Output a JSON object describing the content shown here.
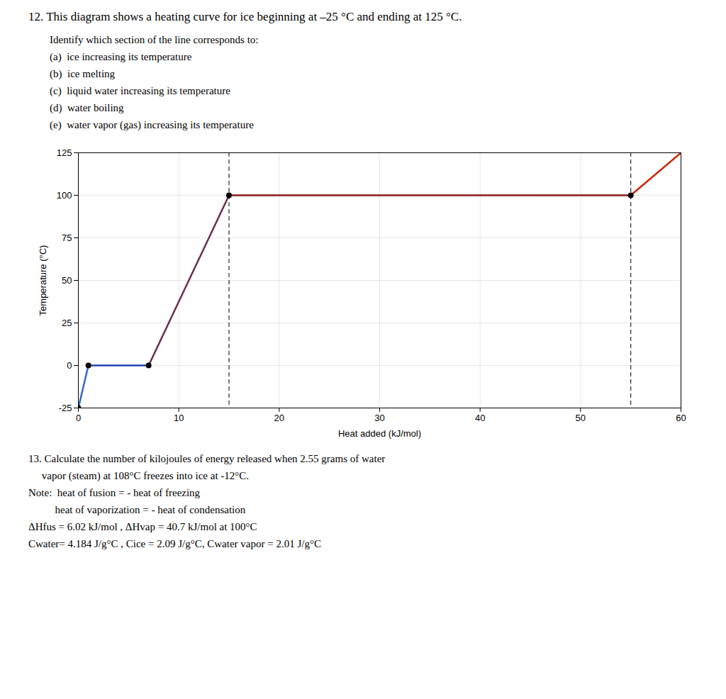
{
  "chart_data": {
    "type": "line",
    "title": "12. This diagram shows a heating curve for ice beginning at –25 °C and ending at 125 °C.",
    "subtitle": [
      "Identify which section of the line corresponds to:",
      "(a)  ice increasing its temperature",
      "(b)  ice melting",
      "(c)  liquid water increasing its temperature",
      "(d)  water boiling",
      "(e)  water vapor (gas) increasing its temperature"
    ],
    "annotations": [
      "13. Calculate the number of kilojoules of energy released when 2.55 grams of water",
      "     vapor (steam) at 108°C freezes into ice at -12°C.",
      "Note:  heat of fusion = - heat of freezing",
      "          heat of vaporization = - heat of condensation",
      "ΔHfus = 6.02 kJ/mol , ΔHvap = 40.7 kJ/mol at 100°C",
      "Cwater= 4.184 J/g°C , Cice = 2.09 J/g°C, Cwater vapor = 2.01 J/g°C"
    ],
    "x": [
      0,
      1,
      7,
      15,
      55,
      60
    ],
    "values": [
      -25,
      0,
      0,
      100,
      100,
      125
    ],
    "colors": [
      "#3366cc",
      "#2244aa",
      "#6b2d4e",
      "#8b1a1a",
      "#cc2200"
    ],
    "markers": {
      "x": [
        0,
        1,
        7,
        15,
        55
      ],
      "y": [
        -25,
        0,
        0,
        100,
        100
      ]
    },
    "vlines": [
      15,
      55
    ],
    "xlim": [
      0,
      60
    ],
    "ylim": [
      -25,
      125
    ],
    "xticks": [
      0,
      10,
      20,
      30,
      40,
      50,
      60
    ],
    "yticks": [
      -25,
      0,
      25,
      50,
      75,
      100,
      125
    ],
    "xlabel": "Heat added (kJ/mol)",
    "ylabel": "Temperature (°C)",
    "grid": true
  }
}
